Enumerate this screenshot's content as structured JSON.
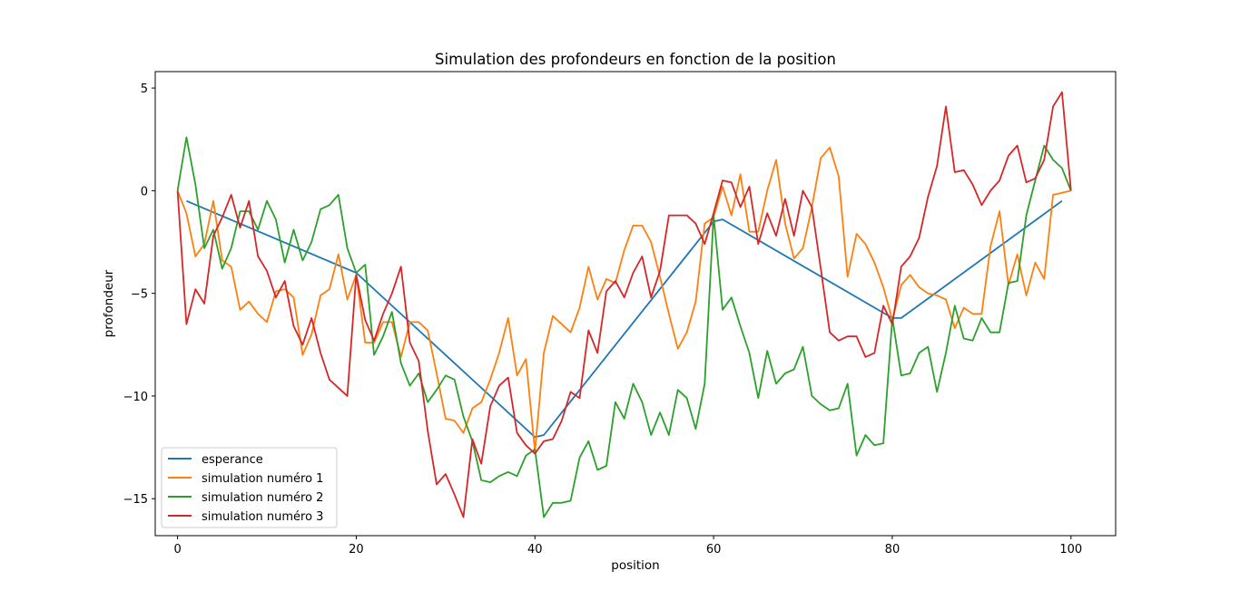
{
  "chart_data": {
    "type": "line",
    "title": "Simulation des profondeurs en fonction de la position",
    "xlabel": "position",
    "ylabel": "profondeur",
    "xlim": [
      -2.5,
      105
    ],
    "ylim": [
      -16.8,
      5.8
    ],
    "x_ticks": [
      0,
      20,
      40,
      60,
      80,
      100
    ],
    "y_ticks": [
      5,
      0,
      -5,
      -10,
      -15
    ],
    "x_tick_labels": [
      "0",
      "20",
      "40",
      "60",
      "80",
      "100"
    ],
    "y_tick_labels": [
      "5",
      "0",
      "−5",
      "−10",
      "−15"
    ],
    "grid": false,
    "legend_position": "lower-left",
    "series": [
      {
        "name": "esperance",
        "color": "#1f77b4",
        "x": [
          1,
          20,
          40,
          41,
          60,
          61,
          80,
          81,
          99
        ],
        "y": [
          -0.5,
          -4.0,
          -12.0,
          -11.9,
          -1.5,
          -1.4,
          -6.2,
          -6.2,
          -0.5
        ],
        "curve": "x = [x0, x1, x2, x3, x4, x5, x6, x7, x8]"
      },
      {
        "name": "simulation numéro 1",
        "color": "#ff7f0e",
        "x": [
          0,
          1,
          2,
          3,
          4,
          5,
          6,
          7,
          8,
          9,
          10,
          11,
          12,
          13,
          14,
          15,
          16,
          17,
          18,
          19,
          20,
          21,
          22,
          23,
          24,
          25,
          26,
          27,
          28,
          29,
          30,
          31,
          32,
          33,
          34,
          35,
          36,
          37,
          38,
          39,
          40,
          41,
          42,
          43,
          44,
          45,
          46,
          47,
          48,
          49,
          50,
          51,
          52,
          53,
          54,
          55,
          56,
          57,
          58,
          59,
          60,
          61,
          62,
          63,
          64,
          65,
          66,
          67,
          68,
          69,
          70,
          71,
          72,
          73,
          74,
          75,
          76,
          77,
          78,
          79,
          80,
          81,
          82,
          83,
          84,
          85,
          86,
          87,
          88,
          89,
          90,
          91,
          92,
          93,
          94,
          95,
          96,
          97,
          98,
          99,
          100
        ],
        "y": [
          0,
          -1.1,
          -3.2,
          -2.6,
          -0.5,
          -3.4,
          -3.7,
          -5.8,
          -5.4,
          -6.0,
          -6.4,
          -4.9,
          -4.8,
          -5.2,
          -8.0,
          -7.0,
          -5.1,
          -4.8,
          -3.1,
          -5.3,
          -4.1,
          -7.4,
          -7.4,
          -6.4,
          -6.4,
          -8.1,
          -6.4,
          -6.4,
          -6.8,
          -8.9,
          -11.1,
          -11.2,
          -11.8,
          -10.6,
          -10.3,
          -9.2,
          -7.9,
          -6.2,
          -9.0,
          -8.2,
          -12.7,
          -7.9,
          -6.1,
          -6.5,
          -6.9,
          -5.7,
          -3.7,
          -5.3,
          -4.3,
          -4.5,
          -2.9,
          -1.7,
          -1.7,
          -2.5,
          -4.2,
          -6.0,
          -7.7,
          -6.9,
          -5.4,
          -1.6,
          -1.3,
          0.2,
          -1.2,
          0.8,
          -2.0,
          -2.0,
          0.0,
          1.5,
          -1.6,
          -3.3,
          -2.8,
          -0.8,
          1.6,
          2.1,
          0.7,
          -4.2,
          -2.1,
          -2.6,
          -3.5,
          -4.7,
          -6.3,
          -4.6,
          -4.1,
          -4.7,
          -5.0,
          -5.1,
          -5.3,
          -6.7,
          -5.7,
          -6.0,
          -6.0,
          -2.7,
          -1.0,
          -4.6,
          -3.1,
          -5.1,
          -3.5,
          -4.3,
          -0.2,
          -0.1,
          0
        ]
      },
      {
        "name": "simulation numéro 2",
        "color": "#2ca02c",
        "x": [
          0,
          1,
          2,
          3,
          4,
          5,
          6,
          7,
          8,
          9,
          10,
          11,
          12,
          13,
          14,
          15,
          16,
          17,
          18,
          19,
          20,
          21,
          22,
          23,
          24,
          25,
          26,
          27,
          28,
          29,
          30,
          31,
          32,
          33,
          34,
          35,
          36,
          37,
          38,
          39,
          40,
          41,
          42,
          43,
          44,
          45,
          46,
          47,
          48,
          49,
          50,
          51,
          52,
          53,
          54,
          55,
          56,
          57,
          58,
          59,
          60,
          61,
          62,
          63,
          64,
          65,
          66,
          67,
          68,
          69,
          70,
          71,
          72,
          73,
          74,
          75,
          76,
          77,
          78,
          79,
          80,
          81,
          82,
          83,
          84,
          85,
          86,
          87,
          88,
          89,
          90,
          91,
          92,
          93,
          94,
          95,
          96,
          97,
          98,
          99,
          100
        ],
        "y": [
          0,
          2.6,
          0.3,
          -2.8,
          -1.9,
          -3.8,
          -2.8,
          -1.0,
          -1.0,
          -1.9,
          -0.5,
          -1.4,
          -3.5,
          -1.9,
          -3.4,
          -2.5,
          -0.9,
          -0.7,
          -0.2,
          -2.8,
          -4.0,
          -3.6,
          -8.0,
          -7.1,
          -5.9,
          -8.4,
          -9.5,
          -8.9,
          -10.3,
          -9.7,
          -9.0,
          -9.2,
          -11.0,
          -12.2,
          -14.1,
          -14.2,
          -13.9,
          -13.7,
          -13.9,
          -12.9,
          -12.6,
          -15.9,
          -15.2,
          -15.2,
          -15.1,
          -13.0,
          -12.2,
          -13.6,
          -13.4,
          -10.3,
          -11.1,
          -9.4,
          -10.3,
          -11.9,
          -10.8,
          -11.9,
          -9.7,
          -10.1,
          -11.6,
          -9.4,
          -1.2,
          -5.8,
          -5.2,
          -6.6,
          -7.9,
          -10.1,
          -7.8,
          -9.4,
          -8.9,
          -8.7,
          -7.6,
          -10.0,
          -10.4,
          -10.7,
          -10.6,
          -9.4,
          -12.9,
          -11.9,
          -12.4,
          -12.3,
          -6.2,
          -9.0,
          -8.9,
          -7.9,
          -7.6,
          -9.8,
          -7.9,
          -5.6,
          -7.2,
          -7.3,
          -6.2,
          -6.9,
          -6.9,
          -4.5,
          -4.4,
          -1.2,
          0.5,
          2.2,
          1.5,
          1.1,
          0
        ]
      },
      {
        "name": "simulation numéro 3",
        "color": "#d62728",
        "x": [
          0,
          1,
          2,
          3,
          4,
          5,
          6,
          7,
          8,
          9,
          10,
          11,
          12,
          13,
          14,
          15,
          16,
          17,
          18,
          19,
          20,
          21,
          22,
          23,
          24,
          25,
          26,
          27,
          28,
          29,
          30,
          31,
          32,
          33,
          34,
          35,
          36,
          37,
          38,
          39,
          40,
          41,
          42,
          43,
          44,
          45,
          46,
          47,
          48,
          49,
          50,
          51,
          52,
          53,
          54,
          55,
          56,
          57,
          58,
          59,
          60,
          61,
          62,
          63,
          64,
          65,
          66,
          67,
          68,
          69,
          70,
          71,
          72,
          73,
          74,
          75,
          76,
          77,
          78,
          79,
          80,
          81,
          82,
          83,
          84,
          85,
          86,
          87,
          88,
          89,
          90,
          91,
          92,
          93,
          94,
          95,
          96,
          97,
          98,
          99,
          100
        ],
        "y": [
          0,
          -6.5,
          -4.8,
          -5.5,
          -2.2,
          -1.3,
          -0.2,
          -1.8,
          -0.5,
          -3.2,
          -3.9,
          -5.2,
          -4.4,
          -6.6,
          -7.5,
          -6.2,
          -7.9,
          -9.2,
          -9.6,
          -10.0,
          -4.1,
          -6.3,
          -7.3,
          -6.0,
          -5.0,
          -3.7,
          -7.4,
          -8.3,
          -11.7,
          -14.3,
          -13.8,
          -14.8,
          -15.9,
          -12.1,
          -13.3,
          -10.5,
          -9.5,
          -9.1,
          -11.8,
          -12.4,
          -12.8,
          -12.2,
          -12.1,
          -11.2,
          -9.8,
          -10.1,
          -6.8,
          -7.9,
          -4.9,
          -4.4,
          -5.2,
          -4.0,
          -3.2,
          -5.2,
          -3.9,
          -1.2,
          -1.2,
          -1.2,
          -1.6,
          -2.6,
          -1.1,
          0.5,
          0.4,
          -0.8,
          0.2,
          -2.6,
          -1.1,
          -2.2,
          -0.4,
          -2.2,
          0.0,
          -0.8,
          -3.8,
          -6.9,
          -7.3,
          -7.1,
          -7.1,
          -8.1,
          -7.9,
          -5.6,
          -6.5,
          -3.7,
          -3.2,
          -2.3,
          -0.3,
          1.2,
          4.1,
          0.9,
          1.0,
          0.3,
          -0.7,
          0.0,
          0.5,
          1.7,
          2.2,
          0.4,
          0.6,
          1.5,
          4.1,
          4.8,
          0
        ]
      }
    ]
  }
}
